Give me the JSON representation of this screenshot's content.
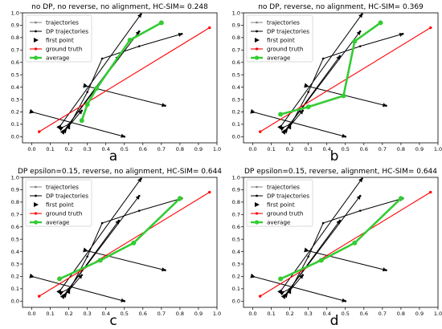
{
  "chart_data": [
    {
      "type": "line",
      "title": "no DP, no reverse, no alignment, HC-SIM= 0.248",
      "label": "a",
      "xlim": [
        -0.05,
        1.0
      ],
      "ylim": [
        -0.05,
        1.0
      ],
      "xticks": [
        "0.0",
        "0.1",
        "0.2",
        "0.3",
        "0.4",
        "0.5",
        "0.6",
        "0.7",
        "0.8",
        "0.9",
        "1.0"
      ],
      "yticks": [
        "0.0",
        "0.1",
        "0.2",
        "0.3",
        "0.4",
        "0.5",
        "0.6",
        "0.7",
        "0.8",
        "0.9",
        "1.0"
      ],
      "legend": [
        "trajectories",
        "DP trajectories",
        "first point",
        "ground truth",
        "average"
      ],
      "legend_position": "top-left",
      "colors": {
        "trajectories": "#808080",
        "dp": "#000000",
        "ground_truth": "#ff0000",
        "average": "#33cc33"
      },
      "trajectories": [
        {
          "x": [
            0.0,
            0.5
          ],
          "y": [
            0.2,
            0.0
          ]
        },
        {
          "x": [
            0.29,
            0.72
          ],
          "y": [
            0.41,
            0.25
          ]
        },
        {
          "x": [
            0.15,
            0.59
          ],
          "y": [
            0.08,
            0.99
          ]
        },
        {
          "x": [
            0.17,
            0.58
          ],
          "y": [
            0.04,
            0.85
          ]
        },
        {
          "x": [
            0.2,
            0.3,
            0.38,
            0.58,
            0.81
          ],
          "y": [
            0.08,
            0.36,
            0.63,
            0.73,
            0.83
          ]
        },
        {
          "x": [
            0.16,
            0.2,
            0.47
          ],
          "y": [
            0.07,
            0.1,
            0.65
          ]
        },
        {
          "x": [
            0.18,
            0.27
          ],
          "y": [
            0.05,
            0.21
          ]
        }
      ],
      "ground_truth": {
        "x": [
          0.04,
          0.96
        ],
        "y": [
          0.04,
          0.88
        ]
      },
      "average": {
        "x": [
          0.27,
          0.3,
          0.35,
          0.53,
          0.7
        ],
        "y": [
          0.13,
          0.26,
          0.39,
          0.78,
          0.92
        ]
      }
    },
    {
      "type": "line",
      "title": "no DP, reverse, no alignment, HC-SIM= 0.369",
      "label": "b",
      "xlim": [
        -0.05,
        1.0
      ],
      "ylim": [
        -0.05,
        1.0
      ],
      "xticks": [
        "0.0",
        "0.1",
        "0.2",
        "0.3",
        "0.4",
        "0.5",
        "0.6",
        "0.7",
        "0.8",
        "0.9",
        "1.0"
      ],
      "yticks": [
        "0.0",
        "0.1",
        "0.2",
        "0.3",
        "0.4",
        "0.5",
        "0.6",
        "0.7",
        "0.8",
        "0.9",
        "1.0"
      ],
      "legend": [
        "trajectories",
        "DP trajectories",
        "first point",
        "ground truth",
        "average"
      ],
      "legend_position": "top-left",
      "colors": {
        "trajectories": "#808080",
        "dp": "#000000",
        "ground_truth": "#ff0000",
        "average": "#33cc33"
      },
      "trajectories": [
        {
          "x": [
            0.0,
            0.5
          ],
          "y": [
            0.2,
            0.0
          ]
        },
        {
          "x": [
            0.29,
            0.72
          ],
          "y": [
            0.41,
            0.25
          ]
        },
        {
          "x": [
            0.15,
            0.59
          ],
          "y": [
            0.08,
            0.99
          ]
        },
        {
          "x": [
            0.17,
            0.58
          ],
          "y": [
            0.04,
            0.85
          ]
        },
        {
          "x": [
            0.2,
            0.3,
            0.38,
            0.58,
            0.81
          ],
          "y": [
            0.08,
            0.36,
            0.63,
            0.73,
            0.83
          ]
        },
        {
          "x": [
            0.16,
            0.2,
            0.47
          ],
          "y": [
            0.07,
            0.1,
            0.65
          ]
        },
        {
          "x": [
            0.18,
            0.27
          ],
          "y": [
            0.05,
            0.21
          ]
        }
      ],
      "ground_truth": {
        "x": [
          0.04,
          0.96
        ],
        "y": [
          0.04,
          0.88
        ]
      },
      "average": {
        "x": [
          0.15,
          0.3,
          0.49,
          0.55,
          0.69
        ],
        "y": [
          0.18,
          0.24,
          0.33,
          0.77,
          0.92
        ]
      }
    },
    {
      "type": "line",
      "title": "DP epsilon=0.15, reverse, no alignment, HC-SIM= 0.644",
      "label": "c",
      "xlim": [
        -0.05,
        1.0
      ],
      "ylim": [
        -0.05,
        1.0
      ],
      "xticks": [
        "0.0",
        "0.1",
        "0.2",
        "0.3",
        "0.4",
        "0.5",
        "0.6",
        "0.7",
        "0.8",
        "0.9",
        "1.0"
      ],
      "yticks": [
        "0.0",
        "0.1",
        "0.2",
        "0.3",
        "0.4",
        "0.5",
        "0.6",
        "0.7",
        "0.8",
        "0.9",
        "1.0"
      ],
      "legend": [
        "trajectories",
        "DP trajectories",
        "first point",
        "ground truth",
        "average"
      ],
      "legend_position": "top-left",
      "colors": {
        "trajectories": "#808080",
        "dp": "#000000",
        "ground_truth": "#ff0000",
        "average": "#33cc33"
      },
      "trajectories": [
        {
          "x": [
            0.0,
            0.5
          ],
          "y": [
            0.2,
            0.0
          ]
        },
        {
          "x": [
            0.29,
            0.72
          ],
          "y": [
            0.41,
            0.25
          ]
        },
        {
          "x": [
            0.15,
            0.59
          ],
          "y": [
            0.08,
            0.99
          ]
        },
        {
          "x": [
            0.17,
            0.58
          ],
          "y": [
            0.04,
            0.85
          ]
        },
        {
          "x": [
            0.2,
            0.3,
            0.38,
            0.58,
            0.81
          ],
          "y": [
            0.08,
            0.36,
            0.63,
            0.73,
            0.83
          ]
        },
        {
          "x": [
            0.16,
            0.2,
            0.47
          ],
          "y": [
            0.07,
            0.1,
            0.65
          ]
        },
        {
          "x": [
            0.18,
            0.27
          ],
          "y": [
            0.05,
            0.21
          ]
        }
      ],
      "ground_truth": {
        "x": [
          0.04,
          0.96
        ],
        "y": [
          0.04,
          0.88
        ]
      },
      "average": {
        "x": [
          0.15,
          0.37,
          0.55,
          0.8
        ],
        "y": [
          0.18,
          0.33,
          0.47,
          0.83
        ]
      }
    },
    {
      "type": "line",
      "title": "DP epsilon=0.15, reverse, alignment, HC-SIM= 0.644",
      "label": "d",
      "xlim": [
        -0.05,
        1.0
      ],
      "ylim": [
        -0.05,
        1.0
      ],
      "xticks": [
        "0.0",
        "0.1",
        "0.2",
        "0.3",
        "0.4",
        "0.5",
        "0.6",
        "0.7",
        "0.8",
        "0.9",
        "1.0"
      ],
      "yticks": [
        "0.0",
        "0.1",
        "0.2",
        "0.3",
        "0.4",
        "0.5",
        "0.6",
        "0.7",
        "0.8",
        "0.9",
        "1.0"
      ],
      "legend": [
        "trajectories",
        "DP trajectories",
        "first point",
        "ground truth",
        "average"
      ],
      "legend_position": "top-left",
      "colors": {
        "trajectories": "#808080",
        "dp": "#000000",
        "ground_truth": "#ff0000",
        "average": "#33cc33"
      },
      "trajectories": [
        {
          "x": [
            0.0,
            0.5
          ],
          "y": [
            0.2,
            0.0
          ]
        },
        {
          "x": [
            0.29,
            0.72
          ],
          "y": [
            0.41,
            0.25
          ]
        },
        {
          "x": [
            0.15,
            0.59
          ],
          "y": [
            0.08,
            0.99
          ]
        },
        {
          "x": [
            0.17,
            0.58
          ],
          "y": [
            0.04,
            0.85
          ]
        },
        {
          "x": [
            0.2,
            0.3,
            0.38,
            0.58,
            0.81
          ],
          "y": [
            0.08,
            0.36,
            0.63,
            0.73,
            0.83
          ]
        },
        {
          "x": [
            0.16,
            0.2,
            0.47
          ],
          "y": [
            0.07,
            0.1,
            0.65
          ]
        },
        {
          "x": [
            0.18,
            0.27
          ],
          "y": [
            0.05,
            0.21
          ]
        }
      ],
      "ground_truth": {
        "x": [
          0.04,
          0.96
        ],
        "y": [
          0.04,
          0.88
        ]
      },
      "average": {
        "x": [
          0.15,
          0.37,
          0.55,
          0.8
        ],
        "y": [
          0.18,
          0.33,
          0.47,
          0.83
        ]
      }
    }
  ]
}
